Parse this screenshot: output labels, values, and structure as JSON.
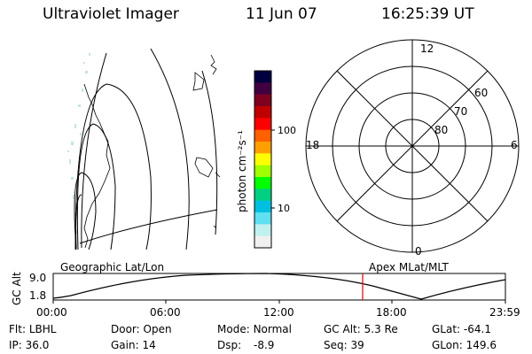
{
  "header": {
    "title": "Ultraviolet Imager",
    "date": "11 Jun 07",
    "time": "16:25:39 UT"
  },
  "colorbar": {
    "unit_label": "photon cm⁻²s⁻¹",
    "tick_labels": [
      "100",
      "10"
    ],
    "colors": [
      "#000040",
      "#400040",
      "#800020",
      "#c00000",
      "#ff0000",
      "#ff6000",
      "#ffa000",
      "#ffff00",
      "#a0ff00",
      "#00ff00",
      "#00d080",
      "#00c0e0",
      "#60e0f0",
      "#c0f0f0",
      "#f0f0f0"
    ]
  },
  "polar_plot": {
    "mlt_labels": [
      "12",
      "18",
      "6",
      "0"
    ],
    "lat_labels": [
      "60",
      "70",
      "80"
    ]
  },
  "map_labels": {
    "left": "Geographic Lat/Lon",
    "right": "Apex MLat/MLT"
  },
  "altitude_plot": {
    "axis_title": "GC Alt",
    "y_ticks": [
      "9.0",
      "1.8"
    ],
    "x_ticks": [
      "00:00",
      "06:00",
      "12:00",
      "18:00",
      "23:59"
    ],
    "marker_color": "#e00000"
  },
  "footer": {
    "row1": [
      {
        "label": "Flt:",
        "value": "LBHL"
      },
      {
        "label": "Door:",
        "value": "Open"
      },
      {
        "label": "Mode:",
        "value": "Normal"
      },
      {
        "label": "GC Alt:",
        "value": "5.3 Re"
      },
      {
        "label": "GLat:",
        "value": "-64.1"
      }
    ],
    "row2": [
      {
        "label": "IP:",
        "value": "36.0"
      },
      {
        "label": "Gain:",
        "value": "14"
      },
      {
        "label": "Dsp:",
        "value": "-8.9"
      },
      {
        "label": "Seq:",
        "value": "39"
      },
      {
        "label": "GLon:",
        "value": "149.6"
      }
    ]
  }
}
